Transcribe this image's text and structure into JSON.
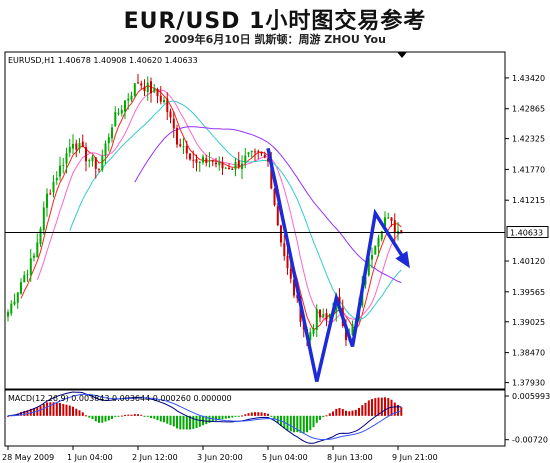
{
  "header": {
    "title": "EUR/USD 1小时图交易参考",
    "subtitle": "2009年6月10日   凯斯顿：周游 ZHOU You"
  },
  "chart_data": {
    "type": "candlestick",
    "symbol_info": "EURUSD,H1  1.40678 1.40908 1.40620 1.40633",
    "current_price_label": "1.40633",
    "current_price": 1.40633,
    "ylim": [
      1.3785,
      1.4385
    ],
    "y_ticks": [
      1.4342,
      1.42865,
      1.42325,
      1.4177,
      1.41215,
      1.4012,
      1.39565,
      1.39025,
      1.3847,
      1.3793
    ],
    "y_tick_labels": [
      "1.43420",
      "1.42865",
      "1.42325",
      "1.41770",
      "1.41215",
      "1.40120",
      "1.39565",
      "1.39025",
      "1.38470",
      "1.37930"
    ],
    "x_tick_labels": [
      "28 May 2009",
      "1 Jun 04:00",
      "2 Jun 12:00",
      "3 Jun 20:00",
      "5 Jun 04:00",
      "8 Jun 13:00",
      "9 Jun 21:00"
    ],
    "x_tick_index": [
      0,
      20,
      40,
      60,
      80,
      100,
      120
    ],
    "price_path": [
      [
        0,
        1.392
      ],
      [
        4,
        1.3975
      ],
      [
        8,
        1.402
      ],
      [
        12,
        1.413
      ],
      [
        16,
        1.418
      ],
      [
        20,
        1.423
      ],
      [
        24,
        1.42
      ],
      [
        28,
        1.418
      ],
      [
        32,
        1.426
      ],
      [
        36,
        1.43
      ],
      [
        40,
        1.4335
      ],
      [
        44,
        1.432
      ],
      [
        48,
        1.43
      ],
      [
        52,
        1.423
      ],
      [
        55,
        1.4215
      ],
      [
        58,
        1.4185
      ],
      [
        62,
        1.4195
      ],
      [
        66,
        1.418
      ],
      [
        70,
        1.4185
      ],
      [
        74,
        1.42
      ],
      [
        78,
        1.42
      ],
      [
        80,
        1.419
      ],
      [
        83,
        1.408
      ],
      [
        86,
        1.3995
      ],
      [
        89,
        1.3935
      ],
      [
        92,
        1.387
      ],
      [
        95,
        1.3915
      ],
      [
        98,
        1.3905
      ],
      [
        101,
        1.394
      ],
      [
        104,
        1.388
      ],
      [
        107,
        1.39
      ],
      [
        110,
        1.399
      ],
      [
        113,
        1.405
      ],
      [
        116,
        1.409
      ],
      [
        119,
        1.407
      ],
      [
        121,
        1.4063
      ]
    ],
    "ma_periods": [
      5,
      10,
      20,
      40
    ],
    "ma_colors": [
      "#ff1f1f",
      "#ff66cc",
      "#33cccc",
      "#9933ff"
    ],
    "up_color": "#00aa00",
    "down_color": "#cc0000",
    "projection_color": "#1c2bd6",
    "projection": [
      [
        80,
        1.4215
      ],
      [
        95,
        1.3795
      ],
      [
        101,
        1.3945
      ],
      [
        106,
        1.3858
      ],
      [
        113,
        1.4098
      ],
      [
        123,
        1.4005
      ]
    ],
    "macd": {
      "label": "MACD(12,26,9) 0.003843 0.003644 0.000260 0.000000",
      "ylim": [
        -0.0085,
        0.0072
      ],
      "y_ticks": [
        0.005993,
        -0.0072
      ],
      "y_tick_labels": [
        "0.005993",
        "-0.00720"
      ]
    }
  }
}
